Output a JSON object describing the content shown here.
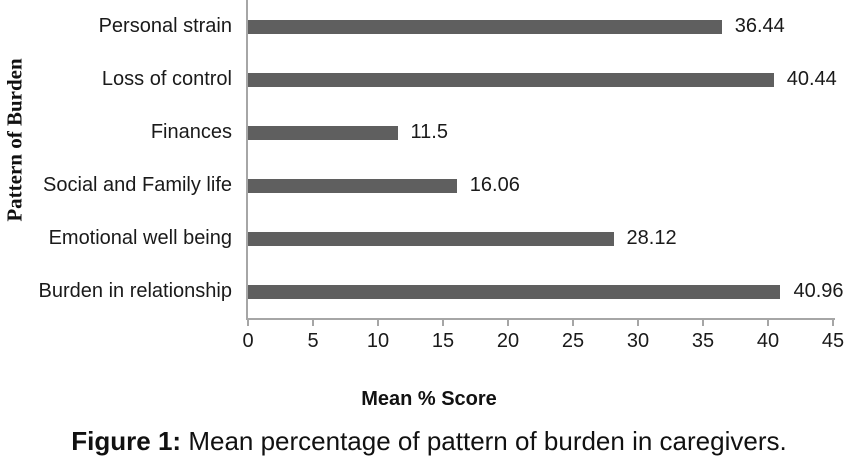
{
  "chart_data": {
    "type": "bar",
    "orientation": "horizontal",
    "title": "",
    "categories": [
      "Personal strain",
      "Loss of control",
      "Finances",
      "Social and Family life",
      "Emotional well being",
      "Burden in relationship"
    ],
    "values": [
      36.44,
      40.44,
      11.5,
      16.06,
      28.12,
      40.96
    ],
    "value_labels": [
      "36.44",
      "40.44",
      "11.5",
      "16.06",
      "28.12",
      "40.96"
    ],
    "xlabel": "Mean % Score",
    "ylabel": "Pattern of Burden",
    "xlim": [
      0,
      45
    ],
    "xticks": [
      0,
      5,
      10,
      15,
      20,
      25,
      30,
      35,
      40,
      45
    ],
    "bar_color": "#5f5f5f",
    "axis_color": "#a6a6a6",
    "text_color": "#111111",
    "grid": false,
    "legend_position": "none"
  },
  "caption": {
    "prefix": "Figure 1:",
    "text": "Mean percentage of pattern of burden in caregivers."
  }
}
